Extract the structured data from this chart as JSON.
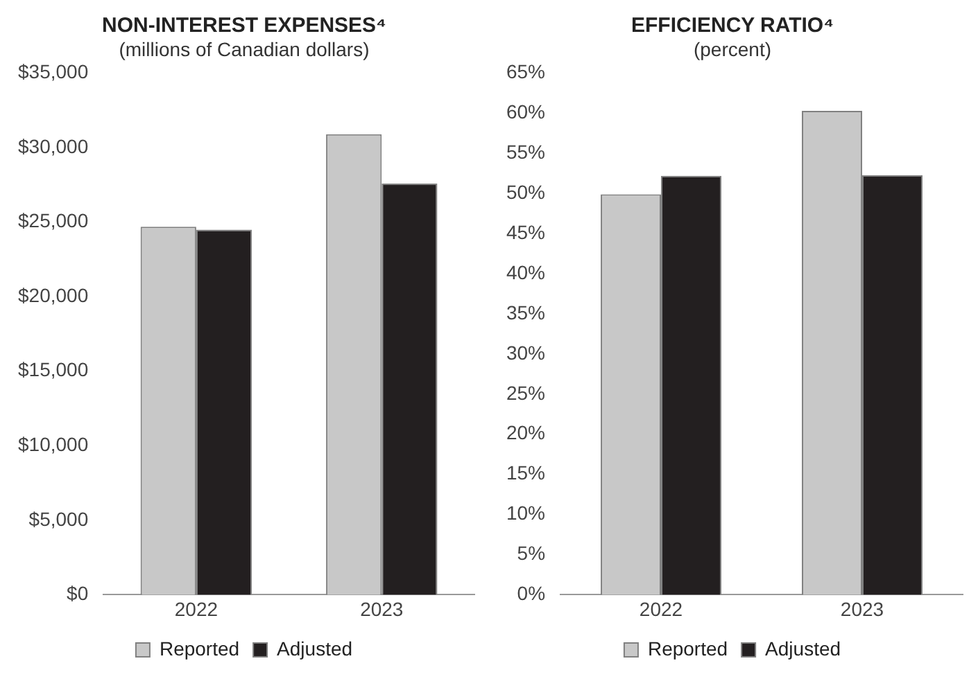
{
  "chart_data": [
    {
      "type": "bar",
      "title": "NON-INTEREST EXPENSES⁴",
      "subtitle": "(millions of Canadian dollars)",
      "categories": [
        "2022",
        "2023"
      ],
      "series": [
        {
          "name": "Reported",
          "color": "#c8c8c8",
          "values": [
            24700,
            30900
          ]
        },
        {
          "name": "Adjusted",
          "color": "#231f20",
          "values": [
            24500,
            27600
          ]
        }
      ],
      "ylim": [
        0,
        35000
      ],
      "yticks": [
        {
          "value": 0,
          "label": "$0"
        },
        {
          "value": 5000,
          "label": "$5,000"
        },
        {
          "value": 10000,
          "label": "$10,000"
        },
        {
          "value": 15000,
          "label": "$15,000"
        },
        {
          "value": 20000,
          "label": "$20,000"
        },
        {
          "value": 25000,
          "label": "$25,000"
        },
        {
          "value": 30000,
          "label": "$30,000"
        },
        {
          "value": 35000,
          "label": "$35,000"
        }
      ],
      "grid": false,
      "legend": "bottom"
    },
    {
      "type": "bar",
      "title": "EFFICIENCY RATIO⁴",
      "subtitle": "(percent)",
      "categories": [
        "2022",
        "2023"
      ],
      "series": [
        {
          "name": "Reported",
          "color": "#c8c8c8",
          "values": [
            49.9,
            60.3
          ]
        },
        {
          "name": "Adjusted",
          "color": "#231f20",
          "values": [
            52.2,
            52.3
          ]
        }
      ],
      "ylim": [
        0,
        65
      ],
      "yticks": [
        {
          "value": 0,
          "label": "0%"
        },
        {
          "value": 5,
          "label": "5%"
        },
        {
          "value": 10,
          "label": "10%"
        },
        {
          "value": 15,
          "label": "15%"
        },
        {
          "value": 20,
          "label": "20%"
        },
        {
          "value": 25,
          "label": "25%"
        },
        {
          "value": 30,
          "label": "30%"
        },
        {
          "value": 35,
          "label": "35%"
        },
        {
          "value": 40,
          "label": "40%"
        },
        {
          "value": 45,
          "label": "45%"
        },
        {
          "value": 50,
          "label": "50%"
        },
        {
          "value": 55,
          "label": "55%"
        },
        {
          "value": 60,
          "label": "60%"
        },
        {
          "value": 65,
          "label": "65%"
        }
      ],
      "grid": false,
      "legend": "bottom"
    }
  ]
}
